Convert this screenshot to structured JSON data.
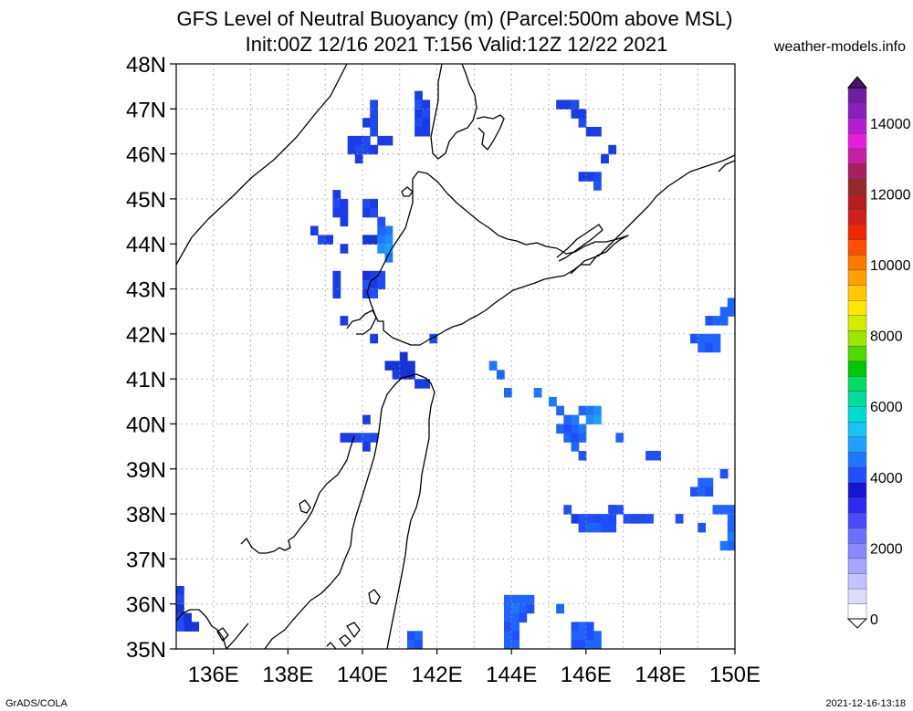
{
  "title_line1": "GFS Level of Neutral Buoyancy (m) (Parcel:500m above MSL)",
  "title_line2": "Init:00Z 12/16 2021 T:156 Valid:12Z 12/22 2021",
  "credit": "weather-models.info",
  "footer_left": "GrADS/COLA",
  "footer_right": "2021-12-16-13:18",
  "map": {
    "lon_range": [
      135,
      150
    ],
    "lat_range": [
      35,
      48
    ],
    "lon_labels": [
      "136E",
      "138E",
      "140E",
      "142E",
      "144E",
      "146E",
      "148E",
      "150E"
    ],
    "lat_labels": [
      "35N",
      "36N",
      "37N",
      "38N",
      "39N",
      "40N",
      "41N",
      "42N",
      "43N",
      "44N",
      "45N",
      "46N",
      "47N",
      "48N"
    ],
    "gridlines": true
  },
  "colorbar": {
    "labels": [
      "0",
      "2000",
      "4000",
      "6000",
      "8000",
      "10000",
      "12000",
      "14000"
    ],
    "colors": [
      "#ffffff",
      "#dcdcff",
      "#c2c2ff",
      "#a6a6ff",
      "#8a8aff",
      "#6e6eff",
      "#4a4aff",
      "#2c2cf0",
      "#1616d0",
      "#1e50ff",
      "#1e78ff",
      "#1ea0ff",
      "#19c4f0",
      "#00dcd2",
      "#00dca0",
      "#00dc64",
      "#00c800",
      "#50dc00",
      "#a0e600",
      "#d2ec00",
      "#ffe600",
      "#ffc800",
      "#ffa000",
      "#ff7800",
      "#ff5000",
      "#f02800",
      "#d21e1e",
      "#b41e1e",
      "#962828",
      "#aa1e64",
      "#c81ea0",
      "#e61edc",
      "#b41ed2",
      "#8c1ebe",
      "#6e1ea0"
    ]
  },
  "cells": [
    [
      140.2,
      47.0,
      "#1e4af0"
    ],
    [
      140.2,
      46.8,
      "#1e4af0"
    ],
    [
      140.0,
      46.6,
      "#1a3ce8"
    ],
    [
      140.2,
      46.6,
      "#1e4af0"
    ],
    [
      139.6,
      46.2,
      "#1a3ce8"
    ],
    [
      139.8,
      46.2,
      "#1a3ce8"
    ],
    [
      140.0,
      46.2,
      "#1e4af0"
    ],
    [
      140.2,
      46.4,
      "#1e4af0"
    ],
    [
      140.4,
      46.2,
      "#1a3ce8"
    ],
    [
      140.6,
      46.2,
      "#1a3ce8"
    ],
    [
      139.6,
      46.0,
      "#1a3ce8"
    ],
    [
      139.8,
      46.0,
      "#1e4af0"
    ],
    [
      140.0,
      46.0,
      "#1e4af0"
    ],
    [
      140.2,
      46.0,
      "#1a3ce8"
    ],
    [
      139.8,
      45.8,
      "#1a3ce8"
    ],
    [
      141.4,
      47.2,
      "#1a3ce8"
    ],
    [
      141.4,
      47.0,
      "#1e50ff"
    ],
    [
      141.6,
      47.0,
      "#1a3ce8"
    ],
    [
      141.4,
      46.8,
      "#1a3ce8"
    ],
    [
      141.6,
      46.8,
      "#1e4af0"
    ],
    [
      141.4,
      46.6,
      "#1e4af0"
    ],
    [
      141.6,
      46.6,
      "#1a3ce8"
    ],
    [
      141.4,
      46.4,
      "#1a3ce8"
    ],
    [
      141.6,
      46.4,
      "#1a3ce8"
    ],
    [
      139.2,
      45.0,
      "#1a3ce8"
    ],
    [
      139.2,
      44.8,
      "#1e4af0"
    ],
    [
      139.4,
      44.8,
      "#1a3ce8"
    ],
    [
      139.2,
      44.6,
      "#1a3ce8"
    ],
    [
      139.4,
      44.6,
      "#1a3ce8"
    ],
    [
      139.4,
      44.4,
      "#1a3ce8"
    ],
    [
      140.0,
      44.8,
      "#1e4af0"
    ],
    [
      140.2,
      44.8,
      "#1a3ce8"
    ],
    [
      140.0,
      44.6,
      "#1a3ce8"
    ],
    [
      140.2,
      44.6,
      "#1e4af0"
    ],
    [
      138.6,
      44.2,
      "#1a3ce8"
    ],
    [
      138.8,
      44.0,
      "#1e4af0"
    ],
    [
      139.0,
      44.0,
      "#1a3ce8"
    ],
    [
      139.4,
      43.8,
      "#1a3ce8"
    ],
    [
      140.0,
      44.0,
      "#1634d8"
    ],
    [
      140.2,
      44.0,
      "#1634d8"
    ],
    [
      140.4,
      44.4,
      "#1e50ff"
    ],
    [
      140.4,
      44.2,
      "#1e64ff"
    ],
    [
      140.6,
      44.2,
      "#1e78ff"
    ],
    [
      140.4,
      44.0,
      "#1e78ff"
    ],
    [
      140.6,
      44.0,
      "#1e8cff"
    ],
    [
      140.4,
      43.8,
      "#1e8cff"
    ],
    [
      140.6,
      43.8,
      "#1ea0ff"
    ],
    [
      140.6,
      43.6,
      "#1e78ff"
    ],
    [
      139.2,
      43.2,
      "#1a3ce8"
    ],
    [
      139.2,
      43.0,
      "#1a3ce8"
    ],
    [
      139.2,
      42.8,
      "#1a3ce8"
    ],
    [
      140.0,
      43.2,
      "#1634d8"
    ],
    [
      140.2,
      43.2,
      "#1a3ce8"
    ],
    [
      140.4,
      43.2,
      "#1e4af0"
    ],
    [
      140.0,
      43.0,
      "#1e50ff"
    ],
    [
      140.2,
      43.0,
      "#1a3ce8"
    ],
    [
      140.4,
      43.0,
      "#1e4af0"
    ],
    [
      140.0,
      42.8,
      "#1a3ce8"
    ],
    [
      140.2,
      42.8,
      "#1e50ff"
    ],
    [
      139.4,
      42.2,
      "#1a3ce8"
    ],
    [
      140.2,
      41.8,
      "#1a3ce8"
    ],
    [
      141.8,
      41.8,
      "#1e4af0"
    ],
    [
      140.6,
      41.2,
      "#1634d8"
    ],
    [
      140.8,
      41.2,
      "#1634d8"
    ],
    [
      141.0,
      41.4,
      "#1634d8"
    ],
    [
      141.2,
      41.2,
      "#1634d8"
    ],
    [
      140.8,
      41.0,
      "#1a3ce8"
    ],
    [
      141.0,
      41.0,
      "#1634d8"
    ],
    [
      141.2,
      41.0,
      "#1634d8"
    ],
    [
      141.0,
      41.2,
      "#1634d8"
    ],
    [
      141.4,
      40.8,
      "#1a3ce8"
    ],
    [
      141.6,
      40.8,
      "#1a3ce8"
    ],
    [
      140.0,
      40.0,
      "#1a3ce8"
    ],
    [
      139.6,
      39.6,
      "#1a3ce8"
    ],
    [
      139.8,
      39.6,
      "#1e4af0"
    ],
    [
      140.0,
      39.6,
      "#1e50ff"
    ],
    [
      140.2,
      39.6,
      "#1e4af0"
    ],
    [
      139.4,
      39.6,
      "#1a3ce8"
    ],
    [
      140.0,
      39.4,
      "#1a3ce8"
    ],
    [
      143.4,
      41.2,
      "#1e78ff"
    ],
    [
      143.6,
      41.0,
      "#1e64ff"
    ],
    [
      143.8,
      40.6,
      "#1e64ff"
    ],
    [
      144.6,
      40.6,
      "#1e78ff"
    ],
    [
      145.0,
      40.4,
      "#1e78ff"
    ],
    [
      145.2,
      40.2,
      "#1e64ff"
    ],
    [
      145.4,
      40.0,
      "#1e64ff"
    ],
    [
      145.6,
      40.0,
      "#1e78ff"
    ],
    [
      145.8,
      40.2,
      "#1e64ff"
    ],
    [
      146.0,
      40.2,
      "#1e78ff"
    ],
    [
      146.2,
      40.2,
      "#1e8cff"
    ],
    [
      146.0,
      40.0,
      "#1e8cff"
    ],
    [
      146.2,
      40.0,
      "#1ea0ff"
    ],
    [
      145.2,
      39.8,
      "#1e64ff"
    ],
    [
      145.4,
      39.8,
      "#1e50ff"
    ],
    [
      145.6,
      39.8,
      "#1e64ff"
    ],
    [
      145.8,
      39.8,
      "#1e78ff"
    ],
    [
      145.4,
      39.6,
      "#1e64ff"
    ],
    [
      145.6,
      39.6,
      "#1e50ff"
    ],
    [
      145.8,
      39.6,
      "#1e64ff"
    ],
    [
      145.6,
      39.4,
      "#1e64ff"
    ],
    [
      145.8,
      39.2,
      "#1e50ff"
    ],
    [
      146.8,
      39.6,
      "#1e64ff"
    ],
    [
      147.6,
      39.2,
      "#1e50ff"
    ],
    [
      147.8,
      39.2,
      "#1e50ff"
    ],
    [
      149.8,
      42.6,
      "#1e64ff"
    ],
    [
      149.6,
      42.4,
      "#1e64ff"
    ],
    [
      149.8,
      42.4,
      "#1e64ff"
    ],
    [
      149.2,
      42.2,
      "#1e50ff"
    ],
    [
      149.4,
      42.2,
      "#1e64ff"
    ],
    [
      149.6,
      42.2,
      "#1e64ff"
    ],
    [
      148.8,
      41.8,
      "#1e50ff"
    ],
    [
      149.0,
      41.8,
      "#1e64ff"
    ],
    [
      149.2,
      41.8,
      "#1e64ff"
    ],
    [
      149.4,
      41.8,
      "#1e64ff"
    ],
    [
      149.0,
      41.6,
      "#1e64ff"
    ],
    [
      149.2,
      41.6,
      "#1e50ff"
    ],
    [
      149.4,
      41.6,
      "#1e64ff"
    ],
    [
      149.6,
      38.8,
      "#1e50ff"
    ],
    [
      149.0,
      38.6,
      "#1e64ff"
    ],
    [
      149.2,
      38.6,
      "#1e64ff"
    ],
    [
      148.8,
      38.4,
      "#1e50ff"
    ],
    [
      149.0,
      38.4,
      "#1e64ff"
    ],
    [
      149.2,
      38.4,
      "#1e50ff"
    ],
    [
      149.4,
      38.0,
      "#1e64ff"
    ],
    [
      149.6,
      38.0,
      "#1e64ff"
    ],
    [
      149.8,
      38.0,
      "#1e64ff"
    ],
    [
      149.8,
      37.8,
      "#1e64ff"
    ],
    [
      149.8,
      37.6,
      "#1e64ff"
    ],
    [
      149.8,
      37.4,
      "#1e78ff"
    ],
    [
      149.8,
      37.2,
      "#1e64ff"
    ],
    [
      149.6,
      37.2,
      "#1e78ff"
    ],
    [
      145.4,
      38.0,
      "#1e50ff"
    ],
    [
      145.6,
      37.8,
      "#1a3ce8"
    ],
    [
      145.8,
      37.8,
      "#1e50ff"
    ],
    [
      146.0,
      37.8,
      "#1e50ff"
    ],
    [
      146.2,
      37.8,
      "#1e4af0"
    ],
    [
      146.4,
      37.8,
      "#1e50ff"
    ],
    [
      146.6,
      37.8,
      "#1e4af0"
    ],
    [
      146.6,
      38.0,
      "#1e4af0"
    ],
    [
      146.8,
      38.0,
      "#1e50ff"
    ],
    [
      146.6,
      38.0,
      "#1e4af0"
    ],
    [
      147.0,
      37.8,
      "#1e50ff"
    ],
    [
      147.2,
      37.8,
      "#1e50ff"
    ],
    [
      147.4,
      37.8,
      "#1e4af0"
    ],
    [
      147.6,
      37.8,
      "#1e50ff"
    ],
    [
      145.8,
      37.6,
      "#1e50ff"
    ],
    [
      146.0,
      37.6,
      "#1e64ff"
    ],
    [
      146.2,
      37.6,
      "#1e64ff"
    ],
    [
      146.4,
      37.6,
      "#1e50ff"
    ],
    [
      146.6,
      37.6,
      "#1e50ff"
    ],
    [
      147.2,
      37.8,
      "#1e4af0"
    ],
    [
      148.4,
      37.8,
      "#1e50ff"
    ],
    [
      149.0,
      37.6,
      "#1e50ff"
    ],
    [
      145.2,
      47.0,
      "#1a3ce8"
    ],
    [
      145.4,
      47.0,
      "#1a3ce8"
    ],
    [
      145.6,
      47.0,
      "#1e4af0"
    ],
    [
      145.6,
      46.8,
      "#1a3ce8"
    ],
    [
      145.8,
      46.8,
      "#1a3ce8"
    ],
    [
      145.8,
      46.6,
      "#1e4af0"
    ],
    [
      146.0,
      46.4,
      "#1a3ce8"
    ],
    [
      146.2,
      46.4,
      "#1a3ce8"
    ],
    [
      146.6,
      46.0,
      "#1a3ce8"
    ],
    [
      146.4,
      45.8,
      "#1a3ce8"
    ],
    [
      145.8,
      45.4,
      "#1a3ce8"
    ],
    [
      146.0,
      45.4,
      "#1a3ce8"
    ],
    [
      146.2,
      45.4,
      "#1e4af0"
    ],
    [
      146.2,
      45.2,
      "#1e50ff"
    ],
    [
      135.0,
      36.2,
      "#1a3ce8"
    ],
    [
      135.0,
      36.0,
      "#1e4af0"
    ],
    [
      135.0,
      35.8,
      "#1634d8"
    ],
    [
      135.0,
      35.6,
      "#1e4af0"
    ],
    [
      135.2,
      35.6,
      "#1634d8"
    ],
    [
      135.2,
      35.4,
      "#1634d8"
    ],
    [
      135.4,
      35.4,
      "#1634d8"
    ],
    [
      135.0,
      35.4,
      "#1e50ff"
    ],
    [
      141.2,
      35.2,
      "#1e50ff"
    ],
    [
      141.4,
      35.2,
      "#1e64ff"
    ],
    [
      141.2,
      35.0,
      "#1e64ff"
    ],
    [
      141.4,
      35.0,
      "#1e50ff"
    ],
    [
      143.8,
      36.0,
      "#1e64ff"
    ],
    [
      144.0,
      36.0,
      "#1e64ff"
    ],
    [
      144.2,
      36.0,
      "#1e64ff"
    ],
    [
      144.4,
      36.0,
      "#1e64ff"
    ],
    [
      143.8,
      35.8,
      "#1e64ff"
    ],
    [
      144.0,
      35.8,
      "#1e78ff"
    ],
    [
      144.2,
      35.8,
      "#1e64ff"
    ],
    [
      144.4,
      35.8,
      "#1e50ff"
    ],
    [
      143.8,
      35.6,
      "#1e64ff"
    ],
    [
      144.0,
      35.6,
      "#1e64ff"
    ],
    [
      144.2,
      35.6,
      "#1e50ff"
    ],
    [
      143.8,
      35.4,
      "#1e50ff"
    ],
    [
      144.0,
      35.4,
      "#1e64ff"
    ],
    [
      143.8,
      35.2,
      "#1e64ff"
    ],
    [
      144.0,
      35.2,
      "#1e50ff"
    ],
    [
      143.8,
      35.0,
      "#1e64ff"
    ],
    [
      144.0,
      35.0,
      "#1e64ff"
    ],
    [
      145.2,
      35.8,
      "#1e64ff"
    ],
    [
      145.6,
      35.4,
      "#1e50ff"
    ],
    [
      145.8,
      35.4,
      "#1e64ff"
    ],
    [
      146.0,
      35.4,
      "#1e50ff"
    ],
    [
      145.6,
      35.2,
      "#1e64ff"
    ],
    [
      145.8,
      35.2,
      "#1e64ff"
    ],
    [
      146.0,
      35.2,
      "#1e50ff"
    ],
    [
      146.2,
      35.2,
      "#1e64ff"
    ],
    [
      145.6,
      35.0,
      "#1e50ff"
    ],
    [
      145.8,
      35.0,
      "#1e50ff"
    ],
    [
      146.0,
      35.0,
      "#1e64ff"
    ],
    [
      146.2,
      35.0,
      "#1e64ff"
    ]
  ]
}
